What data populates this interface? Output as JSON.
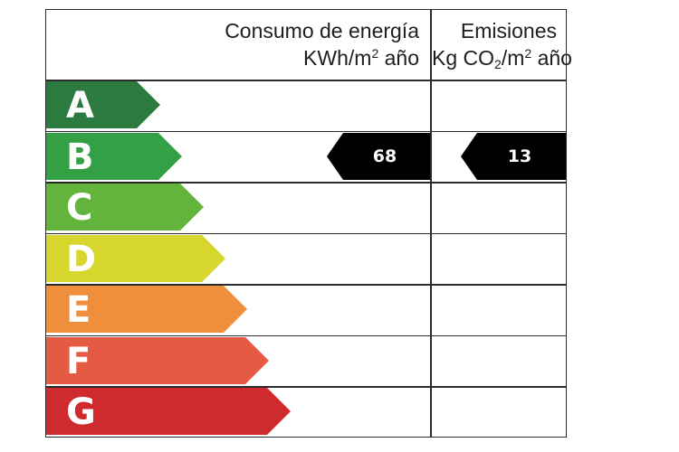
{
  "header": {
    "energy_line1": "Consumo de energía",
    "energy_line2_pre": "KWh/m",
    "energy_line2_sup": "2",
    "energy_line2_post": " año",
    "emissions_line1": "Emisiones",
    "emissions_line2_pre": "Kg CO",
    "emissions_line2_sub": "2",
    "emissions_line2_mid": "/m",
    "emissions_line2_sup": "2",
    "emissions_line2_post": " año"
  },
  "bands": [
    {
      "letter": "A",
      "color": "#2c7a3f"
    },
    {
      "letter": "B",
      "color": "#34a045"
    },
    {
      "letter": "C",
      "color": "#62b43c"
    },
    {
      "letter": "D",
      "color": "#d6d62c"
    },
    {
      "letter": "E",
      "color": "#ef8f3c"
    },
    {
      "letter": "F",
      "color": "#e55a42"
    },
    {
      "letter": "G",
      "color": "#cf2b2e"
    }
  ],
  "rating": {
    "band": "B",
    "energy_value": "68",
    "emissions_value": "13",
    "marker_color": "#000000"
  }
}
